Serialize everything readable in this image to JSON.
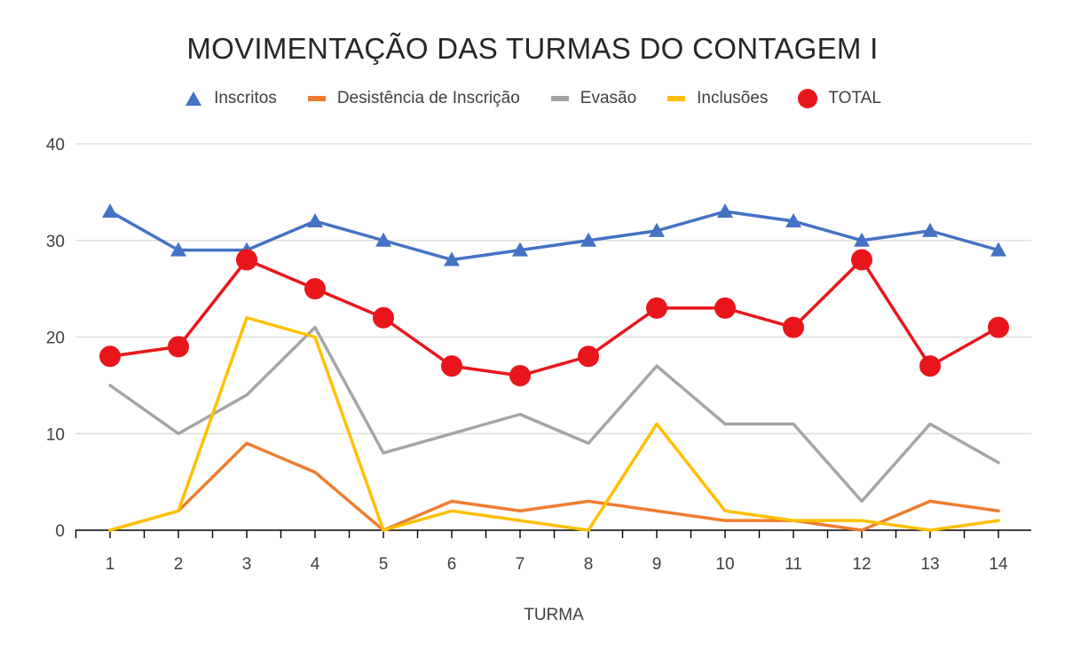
{
  "chart_data": {
    "type": "line",
    "title": "MOVIMENTAÇÃO DAS TURMAS DO CONTAGEM I",
    "xlabel": "TURMA",
    "ylabel": "",
    "ylim": [
      0,
      40
    ],
    "yticks": [
      "0",
      "10",
      "20",
      "30",
      "40"
    ],
    "grid": true,
    "legend_position": "top",
    "categories": [
      "1",
      "2",
      "3",
      "4",
      "5",
      "6",
      "7",
      "8",
      "9",
      "10",
      "11",
      "12",
      "13",
      "14"
    ],
    "series": [
      {
        "name": "Inscritos",
        "color": "#4472C4",
        "marker": "triangle",
        "values": [
          33,
          29,
          29,
          32,
          30,
          28,
          29,
          30,
          31,
          33,
          32,
          30,
          31,
          29
        ]
      },
      {
        "name": "Desistência de Inscrição",
        "color": "#ED7D31",
        "marker": "none",
        "values": [
          0,
          2,
          9,
          6,
          0,
          3,
          2,
          3,
          2,
          1,
          1,
          0,
          3,
          2
        ]
      },
      {
        "name": "Evasão",
        "color": "#A5A5A5",
        "marker": "none",
        "values": [
          15,
          10,
          14,
          21,
          8,
          10,
          12,
          9,
          17,
          11,
          11,
          3,
          11,
          7
        ]
      },
      {
        "name": "Inclusões",
        "color": "#FFC000",
        "marker": "none",
        "values": [
          0,
          2,
          22,
          20,
          0,
          2,
          1,
          0,
          11,
          2,
          1,
          1,
          0,
          1
        ]
      },
      {
        "name": "TOTAL",
        "color": "#E8161B",
        "marker": "circle",
        "values": [
          18,
          19,
          28,
          25,
          22,
          17,
          16,
          18,
          23,
          23,
          21,
          28,
          17,
          21
        ]
      }
    ]
  }
}
